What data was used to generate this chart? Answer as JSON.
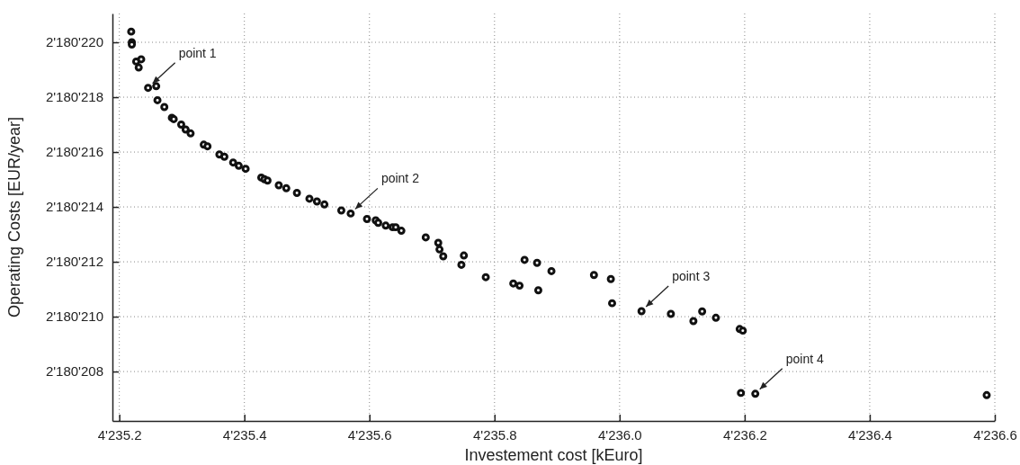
{
  "chart_data": {
    "type": "scatter",
    "xlabel": "Investement cost [kEuro]",
    "ylabel": "Operating Costs [EUR/year]",
    "xlim": [
      4235.189,
      4236.6
    ],
    "ylim": [
      2180206.2,
      2180221.05
    ],
    "xticks": [
      {
        "value": 4235.2,
        "label": "4'235.2"
      },
      {
        "value": 4235.4,
        "label": "4'235.4"
      },
      {
        "value": 4235.6,
        "label": "4'235.6"
      },
      {
        "value": 4235.8,
        "label": "4'235.8"
      },
      {
        "value": 4236.0,
        "label": "4'236.0"
      },
      {
        "value": 4236.2,
        "label": "4'236.2"
      },
      {
        "value": 4236.4,
        "label": "4'236.4"
      },
      {
        "value": 4236.6,
        "label": "4'236.6"
      }
    ],
    "yticks": [
      {
        "value": 2180208,
        "label": "2'180'208"
      },
      {
        "value": 2180210,
        "label": "2'180'210"
      },
      {
        "value": 2180212,
        "label": "2'180'212"
      },
      {
        "value": 2180214,
        "label": "2'180'214"
      },
      {
        "value": 2180216,
        "label": "2'180'216"
      },
      {
        "value": 2180218,
        "label": "2'180'218"
      },
      {
        "value": 2180220,
        "label": "2'180'220"
      }
    ],
    "grid": true,
    "marker": "circle",
    "series": [
      {
        "color": "#111111",
        "x": [
          4235.219,
          4235.22,
          4235.22,
          4235.227,
          4235.231,
          4235.235,
          4235.246,
          4235.259,
          4235.261,
          4235.272,
          4235.284,
          4235.287,
          4235.299,
          4235.306,
          4235.314,
          4235.335,
          4235.341,
          4235.36,
          4235.368,
          4235.382,
          4235.391,
          4235.402,
          4235.427,
          4235.432,
          4235.437,
          4235.455,
          4235.467,
          4235.484,
          4235.504,
          4235.516,
          4235.528,
          4235.555,
          4235.57,
          4235.596,
          4235.61,
          4235.614,
          4235.626,
          4235.637,
          4235.642,
          4235.651,
          4235.69,
          4235.71,
          4235.712,
          4235.718,
          4235.747,
          4235.751,
          4235.786,
          4235.83,
          4235.84,
          4235.848,
          4235.868,
          4235.87,
          4235.891,
          4235.959,
          4235.986,
          4235.988,
          4236.035,
          4236.082,
          4236.118,
          4236.132,
          4236.154,
          4236.192,
          4236.197,
          4236.194,
          4236.217,
          4236.587
        ],
        "values": [
          2180220.39,
          2180220.0,
          2180219.92,
          2180219.3,
          2180219.08,
          2180219.38,
          2180218.34,
          2180218.4,
          2180217.89,
          2180217.64,
          2180217.25,
          2180217.2,
          2180217.0,
          2180216.82,
          2180216.68,
          2180216.27,
          2180216.21,
          2180215.91,
          2180215.83,
          2180215.62,
          2180215.5,
          2180215.39,
          2180215.07,
          2180215.01,
          2180214.96,
          2180214.79,
          2180214.68,
          2180214.51,
          2180214.3,
          2180214.2,
          2180214.09,
          2180213.87,
          2180213.76,
          2180213.56,
          2180213.51,
          2180213.42,
          2180213.32,
          2180213.26,
          2180213.26,
          2180213.13,
          2180212.89,
          2180212.69,
          2180212.45,
          2180212.2,
          2180211.89,
          2180212.23,
          2180211.44,
          2180211.21,
          2180211.13,
          2180212.07,
          2180211.96,
          2180210.96,
          2180211.66,
          2180211.52,
          2180211.37,
          2180210.49,
          2180210.2,
          2180210.1,
          2180209.84,
          2180210.19,
          2180209.96,
          2180209.55,
          2180209.49,
          2180207.22,
          2180207.19,
          2180207.14
        ]
      }
    ],
    "annotations": [
      {
        "text": "point 1",
        "x": 4235.246,
        "y": 2180218.34
      },
      {
        "text": "point 2",
        "x": 4235.57,
        "y": 2180213.76
      },
      {
        "text": "point 3",
        "x": 4236.035,
        "y": 2180210.2
      },
      {
        "text": "point 4",
        "x": 4236.217,
        "y": 2180207.19
      }
    ]
  }
}
